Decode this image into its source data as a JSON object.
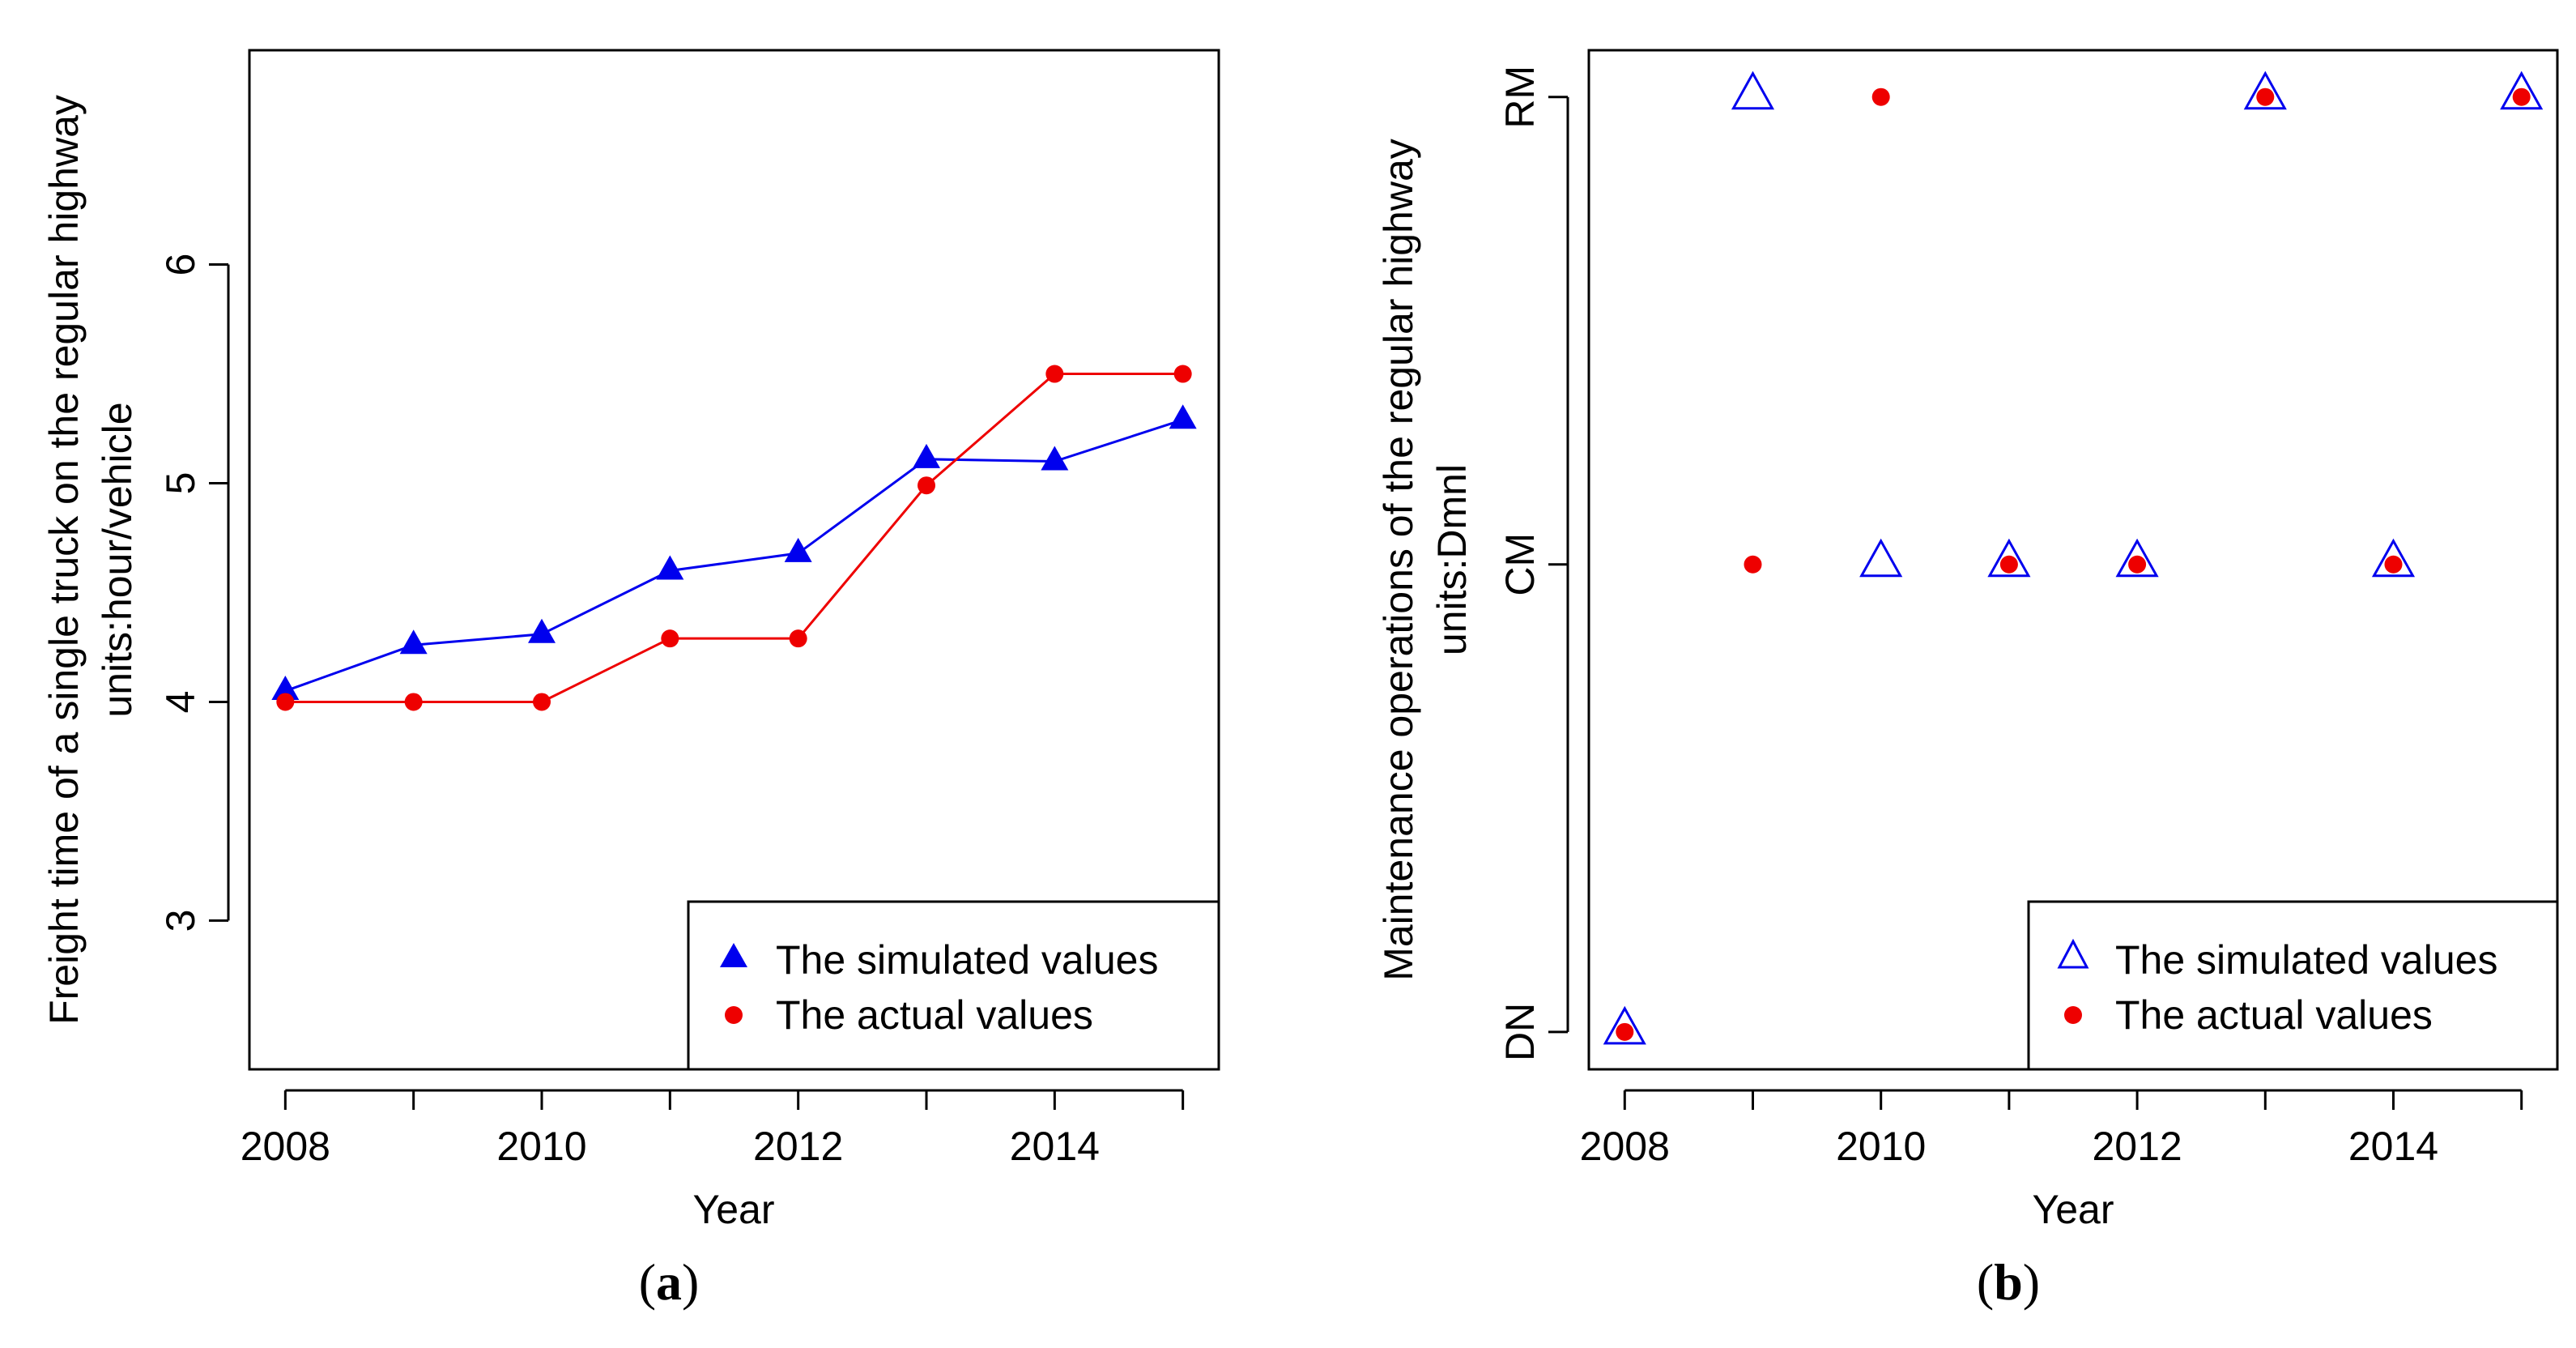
{
  "chart_data": [
    {
      "type": "line",
      "panel_label": {
        "open": "(",
        "letter": "a",
        "close": ")"
      },
      "xlabel": "Year",
      "ylabel_lines": [
        "Freight time of a single truck on the regular highway",
        "units:hour/vehicle"
      ],
      "x": [
        2008,
        2009,
        2010,
        2011,
        2012,
        2013,
        2014,
        2015
      ],
      "xticks": [
        "2008",
        "2010",
        "2012",
        "2014"
      ],
      "xlim": [
        2007.72,
        2015.28
      ],
      "yticks": [
        "3",
        "4",
        "5",
        "6"
      ],
      "ylim": [
        2.32,
        6.98
      ],
      "series": [
        {
          "name": "The simulated values",
          "color": "#0000ee",
          "marker": "filled-triangle",
          "line": true,
          "values": [
            4.05,
            4.26,
            4.31,
            4.6,
            4.68,
            5.11,
            5.1,
            5.29
          ]
        },
        {
          "name": "The actual values",
          "color": "#ee0000",
          "marker": "filled-circle",
          "line": true,
          "values": [
            4.0,
            4.0,
            4.0,
            4.29,
            4.29,
            4.99,
            5.5,
            5.5
          ]
        }
      ],
      "legend_position": "bottom-right"
    },
    {
      "type": "scatter",
      "panel_label": {
        "open": "(",
        "letter": "b",
        "close": ")"
      },
      "xlabel": "Year",
      "ylabel_lines": [
        "Maintenance operations of the regular highway",
        "units:Dmnl"
      ],
      "x": [
        2008,
        2009,
        2010,
        2011,
        2012,
        2013,
        2014,
        2015
      ],
      "xticks": [
        "2008",
        "2010",
        "2012",
        "2014"
      ],
      "xlim": [
        2007.72,
        2015.28
      ],
      "categories": [
        "DN",
        "CM",
        "RM"
      ],
      "ylim": [
        -0.08,
        2.1
      ],
      "series": [
        {
          "name": "The simulated values",
          "color": "#0000ee",
          "marker": "open-triangle",
          "line": false,
          "values": [
            "DN",
            "RM",
            "CM",
            "CM",
            "CM",
            "RM",
            "CM",
            "RM"
          ]
        },
        {
          "name": "The actual values",
          "color": "#ee0000",
          "marker": "filled-circle",
          "line": false,
          "values": [
            "DN",
            "CM",
            "RM",
            "CM",
            "CM",
            "RM",
            "CM",
            "RM"
          ]
        }
      ],
      "legend_position": "bottom-right"
    }
  ]
}
